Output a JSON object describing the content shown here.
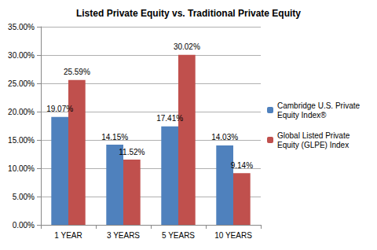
{
  "chart_data": {
    "type": "bar",
    "title": "Listed Private Equity vs. Traditional Private Equity",
    "categories": [
      "1 YEAR",
      "3 YEARS",
      "5 YEARS",
      "10 YEARS"
    ],
    "series": [
      {
        "name": "Cambridge U.S. Private Equity Index®",
        "color": "#4f81bd",
        "values": [
          19.07,
          14.15,
          17.41,
          14.03
        ],
        "value_labels": [
          "19.07%",
          "14.15%",
          "17.41%",
          "14.03%"
        ]
      },
      {
        "name": "Global Listed Private Equity (GLPE) Index",
        "color": "#c0504d",
        "values": [
          25.59,
          11.52,
          30.02,
          9.14
        ],
        "value_labels": [
          "25.59%",
          "11.52%",
          "30.02%",
          "9.14%"
        ]
      }
    ],
    "ylim": [
      0,
      35
    ],
    "yticks": [
      {
        "value": 0,
        "label": "0.00%"
      },
      {
        "value": 5,
        "label": "5.00%"
      },
      {
        "value": 10,
        "label": "10.00%"
      },
      {
        "value": 15,
        "label": "15.00%"
      },
      {
        "value": 20,
        "label": "20.00%"
      },
      {
        "value": 25,
        "label": "25.00%"
      },
      {
        "value": 30,
        "label": "30.00%"
      },
      {
        "value": 35,
        "label": "35.00%"
      }
    ],
    "grid": true,
    "legend": "right",
    "data_labels": true
  }
}
